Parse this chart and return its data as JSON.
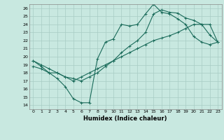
{
  "xlabel": "Humidex (Indice chaleur)",
  "ylabel": "",
  "xlim": [
    -0.5,
    23.5
  ],
  "ylim": [
    13.5,
    26.5
  ],
  "xticks": [
    0,
    1,
    2,
    3,
    4,
    5,
    6,
    7,
    8,
    9,
    10,
    11,
    12,
    13,
    14,
    15,
    16,
    17,
    18,
    19,
    20,
    21,
    22,
    23
  ],
  "yticks": [
    14,
    15,
    16,
    17,
    18,
    19,
    20,
    21,
    22,
    23,
    24,
    25,
    26
  ],
  "bg_color": "#c8e8e0",
  "line_color": "#1a6b5a",
  "grid_color": "#a8ccc4",
  "line1_x": [
    0,
    1,
    2,
    3,
    4,
    5,
    6,
    7,
    8,
    9,
    10,
    11,
    12,
    13,
    14,
    15,
    16,
    17,
    18,
    19,
    20,
    21,
    22,
    23
  ],
  "line1_y": [
    19.5,
    18.8,
    18.0,
    17.3,
    16.3,
    14.8,
    14.3,
    14.3,
    19.7,
    21.8,
    22.2,
    24.0,
    23.8,
    24.0,
    25.3,
    26.5,
    25.5,
    25.3,
    24.7,
    24.0,
    22.5,
    21.8,
    21.5,
    21.8
  ],
  "line2_x": [
    0,
    1,
    2,
    3,
    4,
    5,
    6,
    7,
    8,
    9,
    10,
    11,
    12,
    13,
    14,
    15,
    16,
    17,
    18,
    19,
    20,
    21,
    22,
    23
  ],
  "line2_y": [
    18.8,
    18.5,
    18.0,
    18.0,
    17.5,
    17.0,
    17.5,
    18.0,
    18.5,
    19.0,
    19.5,
    20.0,
    20.5,
    21.0,
    21.5,
    22.0,
    22.3,
    22.6,
    23.0,
    23.5,
    24.0,
    24.0,
    24.0,
    21.8
  ],
  "line3_x": [
    0,
    1,
    2,
    3,
    4,
    5,
    6,
    7,
    8,
    9,
    10,
    11,
    12,
    13,
    14,
    15,
    16,
    17,
    18,
    19,
    20,
    21,
    22,
    23
  ],
  "line3_y": [
    19.5,
    19.0,
    18.5,
    18.0,
    17.5,
    17.3,
    17.0,
    17.5,
    18.0,
    18.8,
    19.5,
    20.5,
    21.3,
    22.0,
    23.0,
    25.3,
    25.8,
    25.5,
    25.4,
    24.8,
    24.5,
    24.0,
    22.7,
    21.8
  ]
}
